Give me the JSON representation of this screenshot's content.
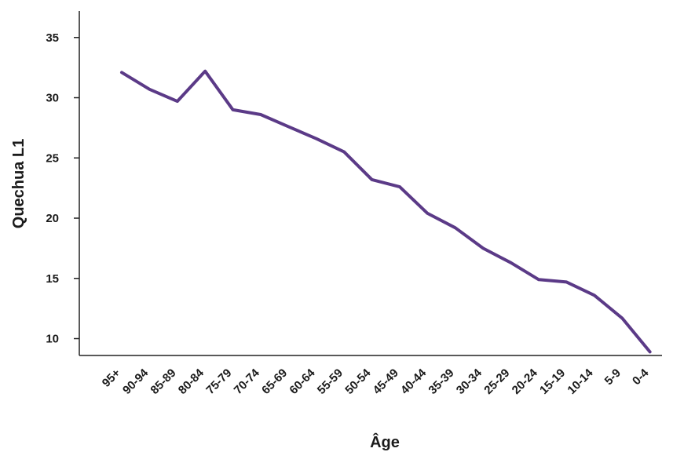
{
  "chart_data": {
    "type": "line",
    "title": "",
    "xlabel": "Âge",
    "ylabel": "Quechua L1",
    "categories": [
      "95+",
      "90-94",
      "85-89",
      "80-84",
      "75-79",
      "70-74",
      "65-69",
      "60-64",
      "55-59",
      "50-54",
      "45-49",
      "40-44",
      "35-39",
      "30-34",
      "25-29",
      "20-24",
      "15-19",
      "10-14",
      "5-9",
      "0-4"
    ],
    "series": [
      {
        "values": [
          32.1,
          30.7,
          29.7,
          32.2,
          29.0,
          28.6,
          27.6,
          26.6,
          25.5,
          23.2,
          22.6,
          20.4,
          19.2,
          17.5,
          16.3,
          14.9,
          14.7,
          13.6,
          11.7,
          8.9
        ]
      }
    ],
    "yticks": [
      10,
      15,
      20,
      25,
      30,
      35
    ],
    "ylim": [
      8.6,
      37.2
    ],
    "grid": false,
    "line_color": "#5b3a87"
  }
}
